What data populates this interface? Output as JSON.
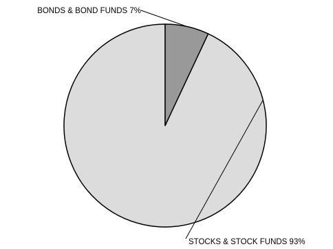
{
  "chart_data": {
    "type": "pie",
    "slices": [
      {
        "label": "STOCKS & STOCK FUNDS",
        "value": 93,
        "value_label": "93%",
        "color": "#dcdcdc"
      },
      {
        "label": "BONDS & BOND FUNDS",
        "value": 7,
        "value_label": "7%",
        "color": "#999999"
      }
    ],
    "legend": "none",
    "start": "12 o'clock",
    "direction": "counter-clockwise"
  }
}
